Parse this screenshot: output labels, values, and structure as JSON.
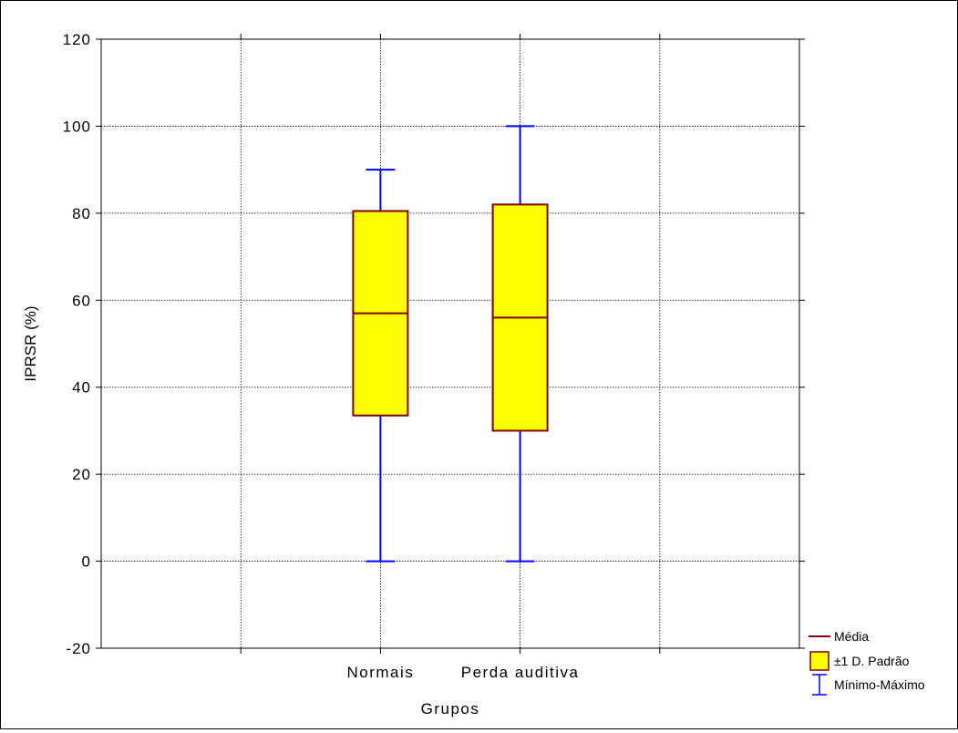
{
  "chart_data": {
    "type": "box",
    "ylabel": "IPRSR (%)",
    "xlabel": "Grupos",
    "ylim": [
      -20,
      120
    ],
    "yticks": [
      -20,
      0,
      20,
      40,
      60,
      80,
      100,
      120
    ],
    "grid": true,
    "categories": [
      "Normais",
      "Perda auditiva"
    ],
    "groups": [
      {
        "name": "Normais",
        "mean": 57,
        "sd_low": 33.5,
        "sd_high": 80.5,
        "min": 0,
        "max": 90
      },
      {
        "name": "Perda auditiva",
        "mean": 56,
        "sd_low": 30,
        "sd_high": 82,
        "min": 0,
        "max": 100
      }
    ],
    "legend": {
      "position": "bottom-right",
      "items": [
        {
          "label": "Média",
          "symbol": "line"
        },
        {
          "label": "±1 D. Padrão",
          "symbol": "box"
        },
        {
          "label": "Mínimo-Máximo",
          "symbol": "whisker"
        }
      ]
    },
    "colors": {
      "box_fill": "#ffff00",
      "box_stroke": "#800000",
      "whisker": "#0000ff",
      "mean": "#800000"
    }
  }
}
